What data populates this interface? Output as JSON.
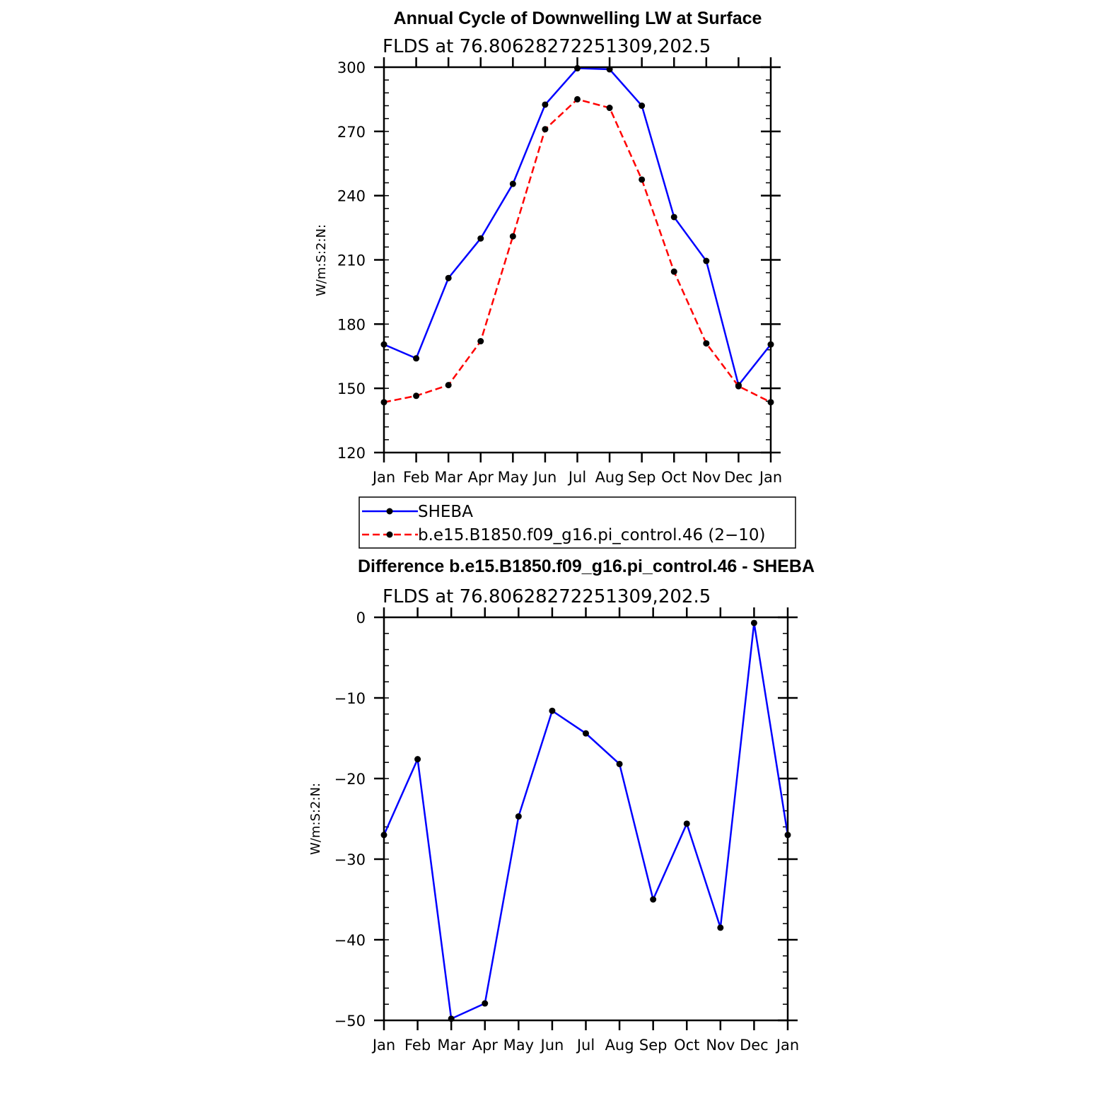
{
  "chart_data": [
    {
      "type": "line",
      "title": "Annual Cycle of Downwelling LW at Surface",
      "subtitle": "FLDS at 76.80628272251309,202.5",
      "ylabel": "W/m:S:2:N:",
      "xlabel": "",
      "categories": [
        "Jan",
        "Feb",
        "Mar",
        "Apr",
        "May",
        "Jun",
        "Jul",
        "Aug",
        "Sep",
        "Oct",
        "Nov",
        "Dec",
        "Jan"
      ],
      "ylim": [
        120,
        300
      ],
      "yticks": [
        120,
        150,
        180,
        210,
        240,
        270,
        300
      ],
      "ytick_labels": [
        "120",
        "150",
        "180",
        "210",
        "240",
        "270",
        "300"
      ],
      "grid": false,
      "series": [
        {
          "name": "SHEBA",
          "color": "#0000ff",
          "dash": "solid",
          "marker": "circle",
          "values": [
            170.5,
            164,
            201.5,
            220,
            245.5,
            282.5,
            299.5,
            299,
            282,
            230,
            209.5,
            151.5,
            170.5
          ]
        },
        {
          "name": "b.e15.B1850.f09_g16.pi_control.46 (2−10)",
          "color": "#ff0000",
          "dash": "dashed",
          "marker": "circle",
          "values": [
            143.5,
            146.5,
            151.5,
            172,
            221,
            271,
            285,
            281,
            247.5,
            204.5,
            171,
            151,
            143.5
          ]
        }
      ],
      "legend": "below-plot"
    },
    {
      "type": "line",
      "title": "Difference b.e15.B1850.f09_g16.pi_control.46 - SHEBA",
      "subtitle": "FLDS at 76.80628272251309,202.5",
      "ylabel": "W/m:S:2:N:",
      "xlabel": "",
      "categories": [
        "Jan",
        "Feb",
        "Mar",
        "Apr",
        "May",
        "Jun",
        "Jul",
        "Aug",
        "Sep",
        "Oct",
        "Nov",
        "Dec",
        "Jan"
      ],
      "ylim": [
        -50,
        0
      ],
      "yticks": [
        -50,
        -40,
        -30,
        -20,
        -10,
        0
      ],
      "ytick_labels": [
        "−50",
        "−40",
        "−30",
        "−20",
        "−10",
        "0"
      ],
      "grid": false,
      "series": [
        {
          "color": "#0000ff",
          "dash": "solid",
          "marker": "circle",
          "values": [
            -27,
            -17.6,
            -49.8,
            -47.9,
            -24.7,
            -11.6,
            -14.4,
            -18.2,
            -35,
            -25.6,
            -38.5,
            -0.7,
            -27
          ]
        }
      ]
    }
  ]
}
